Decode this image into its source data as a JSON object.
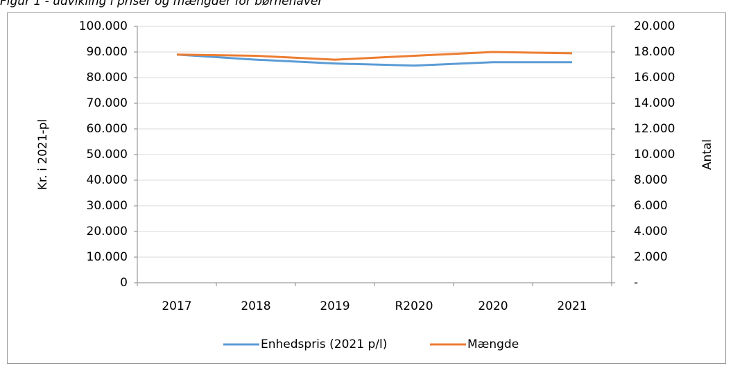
{
  "chart_data": {
    "type": "line",
    "title": "Figur 1 - udvikling i priser og mængder for børnehaver",
    "y_label": "Kr. i 2021-pl",
    "y2_label": "Antal",
    "categories": [
      "2017",
      "2018",
      "2019",
      "R2020",
      "2020",
      "2021"
    ],
    "series": [
      {
        "name": "Enhedspris (2021 p/l)",
        "color": "#5b9bd5",
        "values": [
          89000,
          87000,
          85500,
          84700,
          86000,
          86000
        ]
      },
      {
        "name": "Mængde",
        "color": "#ed7d31",
        "axis": "y2",
        "values": [
          17800,
          17700,
          17400,
          17700,
          18000,
          17900
        ]
      }
    ],
    "ylim": [
      0,
      100000
    ],
    "yticks": [
      0,
      {
        "value": 10000,
        "label": "10.000"
      },
      {
        "value": 20000,
        "label": "20.000"
      },
      {
        "value": 30000,
        "label": "30.000"
      },
      {
        "value": 40000,
        "label": "40.000"
      },
      {
        "value": 50000,
        "label": "50.000"
      },
      {
        "value": 60000,
        "label": "60.000"
      },
      {
        "value": 70000,
        "label": "70.000"
      },
      {
        "value": 80000,
        "label": "80.000"
      },
      {
        "value": 90000,
        "label": "90.000"
      },
      {
        "value": 100000,
        "label": "100.000"
      }
    ],
    "y2lim": [
      0,
      20000
    ],
    "y2ticks": [
      {
        "value": 0,
        "label": "-"
      },
      {
        "value": 2000,
        "label": "2.000"
      },
      {
        "value": 4000,
        "label": "4.000"
      },
      {
        "value": 6000,
        "label": "6.000"
      },
      {
        "value": 8000,
        "label": "8.000"
      },
      {
        "value": 10000,
        "label": "10.000"
      },
      {
        "value": 12000,
        "label": "12.000"
      },
      {
        "value": 14000,
        "label": "14.000"
      },
      {
        "value": 16000,
        "label": "16.000"
      },
      {
        "value": 18000,
        "label": "18.000"
      },
      {
        "value": 20000,
        "label": "20.000"
      }
    ],
    "grid": true,
    "legend": "bottom"
  }
}
